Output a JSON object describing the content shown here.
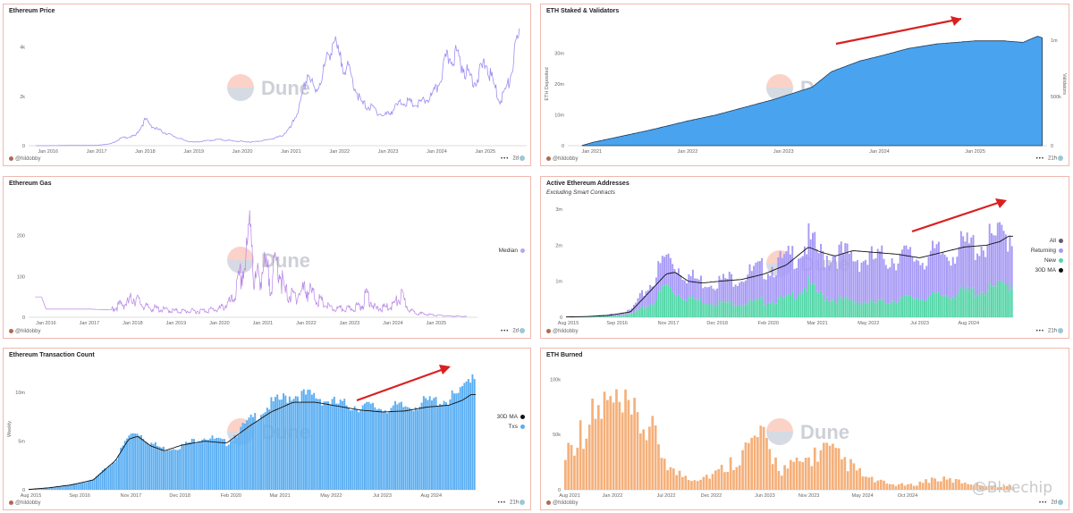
{
  "user": "@hildobby",
  "watermark": "Dune",
  "corner_watermark": "@Bluechip",
  "panels": {
    "price": {
      "title": "Ethereum Price",
      "badge": "2d"
    },
    "staked": {
      "title": "ETH Staked & Validators",
      "badge": "21h"
    },
    "gas": {
      "title": "Ethereum Gas",
      "badge": "2d"
    },
    "active": {
      "title": "Active Ethereum Addresses",
      "subtitle": "Excluding Smart Contracts",
      "badge": "21h"
    },
    "txcount": {
      "title": "Ethereum Transaction Count",
      "badge": "21h"
    },
    "burned": {
      "title": "ETH Burned",
      "badge": "2d"
    }
  },
  "chart_data": [
    {
      "id": "price",
      "type": "line",
      "title": "Ethereum Price",
      "color": "#9d8ff2",
      "x": [
        2015.75,
        2016.0,
        2016.5,
        2017.0,
        2017.3,
        2017.5,
        2017.8,
        2018.0,
        2018.2,
        2018.5,
        2018.8,
        2019.0,
        2019.5,
        2019.9,
        2020.2,
        2020.5,
        2020.8,
        2021.0,
        2021.2,
        2021.35,
        2021.5,
        2021.7,
        2021.87,
        2022.0,
        2022.2,
        2022.45,
        2022.7,
        2022.9,
        2023.0,
        2023.3,
        2023.6,
        2023.9,
        2024.0,
        2024.2,
        2024.4,
        2024.6,
        2024.8,
        2025.0,
        2025.3,
        2025.5,
        2025.6,
        2025.7
      ],
      "y": [
        0.5,
        1,
        12,
        10,
        80,
        300,
        400,
        1050,
        700,
        450,
        220,
        140,
        250,
        180,
        150,
        230,
        380,
        740,
        1700,
        3000,
        2100,
        3200,
        4300,
        3500,
        3000,
        1700,
        1500,
        1200,
        1300,
        1800,
        1650,
        2000,
        2300,
        3500,
        3700,
        3000,
        2600,
        3400,
        1800,
        2600,
        3700,
        4400
      ],
      "xticks": [
        "Jan 2016",
        "Jan 2017",
        "Jan 2018",
        "Jan 2019",
        "Jan 2020",
        "Jan 2021",
        "Jan 2022",
        "Jan 2023",
        "Jan 2024",
        "Jan 2025"
      ],
      "yticks": [
        "0",
        "2k",
        "4k"
      ],
      "ylim": [
        0,
        5000
      ]
    },
    {
      "id": "staked",
      "type": "area",
      "title": "ETH Staked & Validators",
      "ylabel": "ETH Deposited",
      "y2label": "Validators",
      "color": "#4aa3ee",
      "x": [
        2020.9,
        2021.0,
        2021.3,
        2021.6,
        2022.0,
        2022.3,
        2022.6,
        2022.9,
        2023.0,
        2023.3,
        2023.5,
        2023.8,
        2024.0,
        2024.3,
        2024.6,
        2025.0,
        2025.3,
        2025.5,
        2025.65,
        2025.7
      ],
      "y": [
        0.1,
        1,
        3,
        5,
        8,
        10,
        12.5,
        15,
        16,
        19,
        24,
        27.5,
        29,
        31.5,
        33,
        34,
        34,
        33.5,
        35.5,
        35
      ],
      "xticks": [
        "Jan 2021",
        "Jan 2022",
        "Jan 2023",
        "Jan 2024",
        "Jan 2025"
      ],
      "yticks": [
        "0",
        "10m",
        "20m",
        "30m"
      ],
      "y2ticks": [
        "0",
        "500k",
        "1m"
      ],
      "ylim": [
        0,
        40
      ]
    },
    {
      "id": "gas",
      "type": "line",
      "title": "Ethereum Gas",
      "color": "#b785e6",
      "series": [
        {
          "name": "Median"
        }
      ],
      "x": [
        2015.75,
        2015.9,
        2016.0,
        2016.5,
        2017.0,
        2017.5,
        2017.7,
        2017.9,
        2018.0,
        2018.3,
        2018.6,
        2019.0,
        2019.5,
        2020.0,
        2020.3,
        2020.5,
        2020.65,
        2020.72,
        2020.8,
        2021.0,
        2021.2,
        2021.35,
        2021.5,
        2021.7,
        2022.0,
        2022.3,
        2022.6,
        2023.0,
        2023.3,
        2023.4,
        2023.6,
        2023.9,
        2024.0,
        2024.2,
        2024.4,
        2024.7,
        2025.0,
        2025.3,
        2025.7
      ],
      "y": [
        50,
        50,
        20,
        20,
        20,
        18,
        30,
        35,
        50,
        25,
        20,
        15,
        15,
        20,
        40,
        100,
        150,
        280,
        80,
        120,
        90,
        140,
        60,
        50,
        70,
        40,
        20,
        20,
        30,
        60,
        20,
        25,
        30,
        50,
        15,
        8,
        5,
        3,
        2
      ],
      "xticks": [
        "Jan 2016",
        "Jan 2017",
        "Jan 2018",
        "Jan 2019",
        "Jan 2020",
        "Jan 2021",
        "Jan 2022",
        "Jan 2023",
        "Jan 2024",
        "Jan 2025"
      ],
      "yticks": [
        "0",
        "100",
        "200"
      ],
      "ylim": [
        0,
        300
      ]
    },
    {
      "id": "active",
      "type": "bar",
      "title": "Active Ethereum Addresses",
      "subtitle": "Excluding Smart Contracts",
      "series": [
        {
          "name": "All",
          "color": "#6b5a6a"
        },
        {
          "name": "Returning",
          "color": "#a79af5"
        },
        {
          "name": "New",
          "color": "#52d6a8"
        },
        {
          "name": "30D MA",
          "color": "#111111"
        }
      ],
      "x": [
        2015.6,
        2016.0,
        2016.5,
        2017.0,
        2017.5,
        2017.8,
        2018.0,
        2018.3,
        2018.6,
        2019.0,
        2019.5,
        2020.0,
        2020.5,
        2021.0,
        2021.3,
        2021.6,
        2022.0,
        2022.5,
        2023.0,
        2023.5,
        2024.0,
        2024.5,
        2025.0,
        2025.3,
        2025.5
      ],
      "new": [
        0.005,
        0.01,
        0.03,
        0.08,
        0.4,
        0.9,
        0.7,
        0.55,
        0.45,
        0.4,
        0.4,
        0.45,
        0.5,
        0.9,
        0.6,
        0.5,
        0.45,
        0.4,
        0.5,
        0.55,
        0.6,
        0.7,
        0.75,
        0.85,
        0.95
      ],
      "returning": [
        0.01,
        0.02,
        0.04,
        0.1,
        0.6,
        0.8,
        0.8,
        0.6,
        0.55,
        0.6,
        0.75,
        0.9,
        1.05,
        1.2,
        1.1,
        1.3,
        1.2,
        1.2,
        1.2,
        1.1,
        1.15,
        1.25,
        1.3,
        1.35,
        1.4
      ],
      "ma": [
        0.01,
        0.02,
        0.05,
        0.15,
        0.8,
        1.2,
        1.25,
        1.0,
        0.95,
        1.0,
        1.05,
        1.2,
        1.45,
        1.95,
        1.8,
        1.7,
        1.85,
        1.8,
        1.75,
        1.65,
        1.8,
        1.95,
        2.0,
        2.1,
        2.25
      ],
      "xticks": [
        "Aug 2015",
        "Sep 2016",
        "Nov 2017",
        "Dec 2018",
        "Feb 2020",
        "Mar 2021",
        "May 2022",
        "Jul 2023",
        "Aug 2024"
      ],
      "yticks": [
        "0",
        "1m",
        "2m",
        "3m"
      ],
      "ylim": [
        0,
        3.3
      ]
    },
    {
      "id": "txcount",
      "type": "bar",
      "title": "Ethereum Transaction Count",
      "ylabel": "Weekly",
      "series": [
        {
          "name": "30D MA",
          "color": "#111111"
        },
        {
          "name": "Txs",
          "color": "#5aaef2"
        }
      ],
      "x": [
        2015.6,
        2016.0,
        2016.5,
        2017.0,
        2017.5,
        2017.8,
        2018.0,
        2018.3,
        2018.6,
        2019.0,
        2019.5,
        2020.0,
        2020.5,
        2021.0,
        2021.5,
        2022.0,
        2022.5,
        2023.0,
        2023.5,
        2024.0,
        2024.5,
        2025.0,
        2025.3,
        2025.5
      ],
      "bars": [
        0.05,
        0.2,
        0.5,
        1.0,
        3.0,
        5.5,
        6.0,
        4.8,
        4.2,
        4.5,
        5.5,
        4.8,
        7.0,
        8.8,
        9.8,
        9.6,
        8.8,
        8.6,
        8.4,
        8.5,
        9.0,
        9.3,
        10.0,
        12.0
      ],
      "ma": [
        0.05,
        0.2,
        0.5,
        1.0,
        3.0,
        5.2,
        5.5,
        4.5,
        4.0,
        4.6,
        5.0,
        4.8,
        6.5,
        8.0,
        9.0,
        9.0,
        8.6,
        8.2,
        8.0,
        8.1,
        8.5,
        8.7,
        9.2,
        9.8
      ],
      "xticks": [
        "Aug 2015",
        "Sep 2016",
        "Nov 2017",
        "Dec 2018",
        "Feb 2020",
        "Mar 2021",
        "May 2022",
        "Jul 2023",
        "Aug 2024"
      ],
      "yticks": [
        "0",
        "5m",
        "10m"
      ],
      "ylim": [
        0,
        12.5
      ]
    },
    {
      "id": "burned",
      "type": "bar",
      "title": "ETH Burned",
      "color": "#f5b07a",
      "x": [
        2021.6,
        2021.8,
        2022.0,
        2022.2,
        2022.4,
        2022.6,
        2022.8,
        2023.0,
        2023.2,
        2023.4,
        2023.6,
        2023.8,
        2024.0,
        2024.2,
        2024.4,
        2024.6,
        2024.8,
        2025.0,
        2025.2,
        2025.4,
        2025.6
      ],
      "y": [
        40,
        70,
        95,
        80,
        65,
        20,
        12,
        18,
        35,
        60,
        22,
        30,
        45,
        30,
        12,
        6,
        5,
        12,
        10,
        6,
        4
      ],
      "xticks": [
        "Aug 2021",
        "Jan 2022",
        "Jul 2022",
        "Dec 2022",
        "Jun 2023",
        "Nov 2023",
        "May 2024",
        "Oct 2024"
      ],
      "yticks": [
        "0",
        "50k",
        "100k"
      ],
      "ylim": [
        0,
        110
      ]
    }
  ]
}
